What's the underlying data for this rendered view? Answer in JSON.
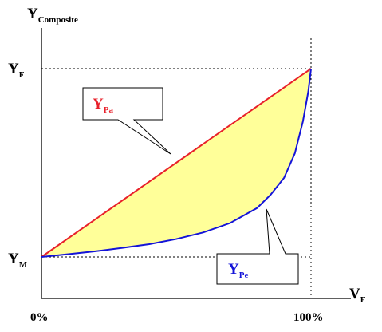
{
  "chart_data": {
    "type": "area",
    "title": "",
    "ylabel": {
      "main": "Y",
      "sub": "Composite"
    },
    "xlabel": {
      "main": "V",
      "sub": "F"
    },
    "xlim": [
      0,
      100
    ],
    "ylim": [
      0,
      1
    ],
    "x_ticks": [
      "0%",
      "100%"
    ],
    "y_ticks": [
      {
        "main": "Y",
        "sub": "M"
      },
      {
        "main": "Y",
        "sub": "F"
      }
    ],
    "grid": false,
    "series": [
      {
        "name": {
          "main": "Y",
          "sub": "Pa"
        },
        "color": "#e8202a",
        "x": [
          0,
          100
        ],
        "y": [
          0,
          1
        ]
      },
      {
        "name": {
          "main": "Y",
          "sub": "Pe"
        },
        "color": "#1414d8",
        "x": [
          0,
          10,
          20,
          30,
          40,
          50,
          60,
          70,
          80,
          85,
          90,
          94,
          97,
          99,
          100
        ],
        "y": [
          0,
          0.015,
          0.03,
          0.048,
          0.068,
          0.095,
          0.13,
          0.18,
          0.26,
          0.33,
          0.42,
          0.55,
          0.72,
          0.88,
          1
        ]
      }
    ],
    "fill_between": {
      "color": "#ffff99"
    }
  }
}
